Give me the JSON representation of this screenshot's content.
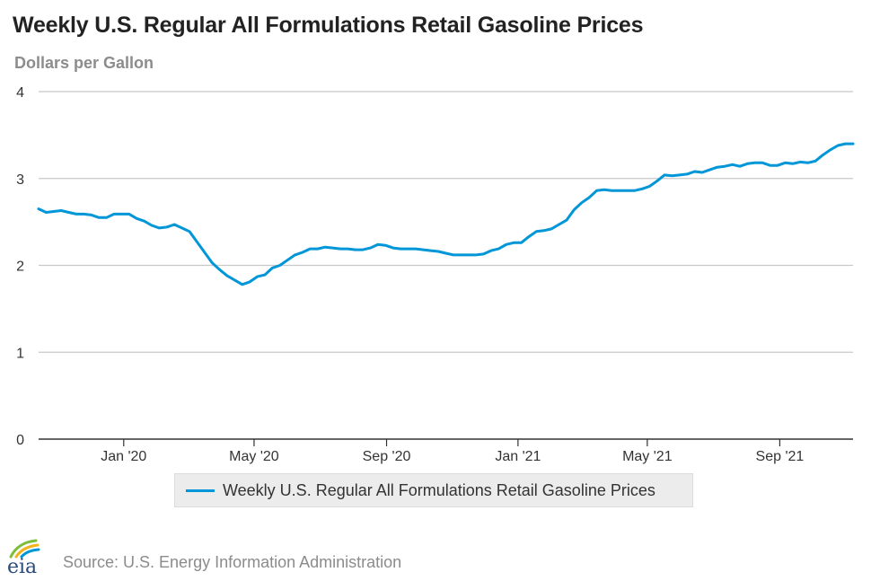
{
  "colors": {
    "series": "#0096d7",
    "grid": "#c8c8c8",
    "axis": "#333333",
    "title": "#222222",
    "muted": "#8c8c8c",
    "legend_bg": "#ececec"
  },
  "icons": {
    "logo": "eia-logo-icon"
  },
  "logo_text": "eia",
  "source": "Source: U.S. Energy Information Administration",
  "chart_data": {
    "type": "line",
    "title": "Weekly U.S. Regular All Formulations Retail Gasoline Prices",
    "subtitle": "Dollars per Gallon",
    "xlabel": "",
    "ylabel": "",
    "ylim": [
      0,
      4
    ],
    "yticks": [
      0,
      1,
      2,
      3,
      4
    ],
    "xlim": [
      "2019-10-14",
      "2021-11-08"
    ],
    "xticks": [
      {
        "date": "2020-01-01",
        "label": "Jan '20"
      },
      {
        "date": "2020-05-01",
        "label": "May '20"
      },
      {
        "date": "2020-09-01",
        "label": "Sep '20"
      },
      {
        "date": "2021-01-01",
        "label": "Jan '21"
      },
      {
        "date": "2021-05-01",
        "label": "May '21"
      },
      {
        "date": "2021-09-01",
        "label": "Sep '21"
      }
    ],
    "grid": true,
    "legend_position": "bottom",
    "series": [
      {
        "name": "Weekly U.S. Regular All Formulations Retail Gasoline Prices",
        "x": [
          "2019-10-14",
          "2019-10-21",
          "2019-10-28",
          "2019-11-04",
          "2019-11-11",
          "2019-11-18",
          "2019-11-25",
          "2019-12-02",
          "2019-12-09",
          "2019-12-16",
          "2019-12-23",
          "2019-12-30",
          "2020-01-06",
          "2020-01-13",
          "2020-01-20",
          "2020-01-27",
          "2020-02-03",
          "2020-02-10",
          "2020-02-17",
          "2020-02-24",
          "2020-03-02",
          "2020-03-09",
          "2020-03-16",
          "2020-03-23",
          "2020-03-30",
          "2020-04-06",
          "2020-04-13",
          "2020-04-20",
          "2020-04-27",
          "2020-05-04",
          "2020-05-11",
          "2020-05-18",
          "2020-05-25",
          "2020-06-01",
          "2020-06-08",
          "2020-06-15",
          "2020-06-22",
          "2020-06-29",
          "2020-07-06",
          "2020-07-13",
          "2020-07-20",
          "2020-07-27",
          "2020-08-03",
          "2020-08-10",
          "2020-08-17",
          "2020-08-24",
          "2020-08-31",
          "2020-09-07",
          "2020-09-14",
          "2020-09-21",
          "2020-09-28",
          "2020-10-05",
          "2020-10-12",
          "2020-10-19",
          "2020-10-26",
          "2020-11-02",
          "2020-11-09",
          "2020-11-16",
          "2020-11-23",
          "2020-11-30",
          "2020-12-07",
          "2020-12-14",
          "2020-12-21",
          "2020-12-28",
          "2021-01-04",
          "2021-01-11",
          "2021-01-18",
          "2021-01-25",
          "2021-02-01",
          "2021-02-08",
          "2021-02-15",
          "2021-02-22",
          "2021-03-01",
          "2021-03-08",
          "2021-03-15",
          "2021-03-22",
          "2021-03-29",
          "2021-04-05",
          "2021-04-12",
          "2021-04-19",
          "2021-04-26",
          "2021-05-03",
          "2021-05-10",
          "2021-05-17",
          "2021-05-24",
          "2021-05-31",
          "2021-06-07",
          "2021-06-14",
          "2021-06-21",
          "2021-06-28",
          "2021-07-05",
          "2021-07-12",
          "2021-07-19",
          "2021-07-26",
          "2021-08-02",
          "2021-08-09",
          "2021-08-16",
          "2021-08-23",
          "2021-08-30",
          "2021-09-06",
          "2021-09-13",
          "2021-09-20",
          "2021-09-27",
          "2021-10-04",
          "2021-10-11",
          "2021-10-18",
          "2021-10-25",
          "2021-11-01",
          "2021-11-08"
        ],
        "values": [
          2.65,
          2.61,
          2.62,
          2.63,
          2.61,
          2.59,
          2.59,
          2.58,
          2.55,
          2.55,
          2.59,
          2.59,
          2.59,
          2.54,
          2.51,
          2.46,
          2.43,
          2.44,
          2.47,
          2.43,
          2.39,
          2.27,
          2.15,
          2.03,
          1.95,
          1.88,
          1.83,
          1.78,
          1.81,
          1.87,
          1.89,
          1.97,
          2.0,
          2.06,
          2.12,
          2.15,
          2.19,
          2.19,
          2.21,
          2.2,
          2.19,
          2.19,
          2.18,
          2.18,
          2.2,
          2.24,
          2.23,
          2.2,
          2.19,
          2.19,
          2.19,
          2.18,
          2.17,
          2.16,
          2.14,
          2.12,
          2.12,
          2.12,
          2.12,
          2.13,
          2.17,
          2.19,
          2.24,
          2.26,
          2.26,
          2.33,
          2.39,
          2.4,
          2.42,
          2.47,
          2.52,
          2.64,
          2.72,
          2.78,
          2.86,
          2.87,
          2.86,
          2.86,
          2.86,
          2.86,
          2.88,
          2.91,
          2.97,
          3.04,
          3.03,
          3.04,
          3.05,
          3.08,
          3.07,
          3.1,
          3.13,
          3.14,
          3.16,
          3.14,
          3.17,
          3.18,
          3.18,
          3.15,
          3.15,
          3.18,
          3.17,
          3.19,
          3.18,
          3.2,
          3.27,
          3.33,
          3.38,
          3.4,
          3.4
        ]
      }
    ]
  }
}
